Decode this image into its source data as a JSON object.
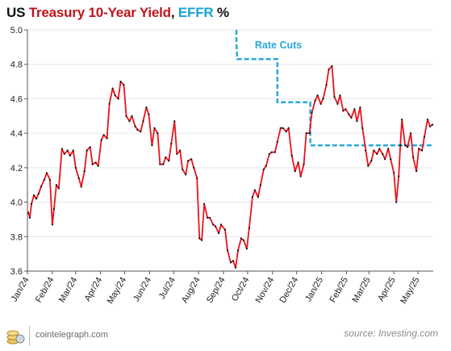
{
  "header": {
    "title_prefix": "US ",
    "title_treasury": "Treasury 10-Year Yield",
    "title_comma": ", ",
    "title_effr": "EFFR",
    "title_suffix": " %"
  },
  "footer": {
    "site": "cointelegraph.com",
    "source": "source: Investing.com"
  },
  "colors": {
    "treasury": "#e8141c",
    "effr": "#29a8dc",
    "axis": "#555555",
    "grid": "#e6e6e6"
  },
  "icons": [
    "coin-stack-logo-icon"
  ],
  "chart_data": {
    "type": "line",
    "title": "US Treasury 10-Year Yield, EFFR %",
    "ylim": [
      3.6,
      5.0
    ],
    "yticks": [
      "3.6",
      "3.8",
      "4.0",
      "4.2",
      "4.4",
      "4.6",
      "4.8",
      "5.0"
    ],
    "xlim": [
      "2024-01-01",
      "2025-05-20"
    ],
    "xticks": [
      {
        "date": "2024-01-01",
        "label": "Jan/24"
      },
      {
        "date": "2024-02-01",
        "label": "Feb/24"
      },
      {
        "date": "2024-03-01",
        "label": "Mar/24"
      },
      {
        "date": "2024-04-01",
        "label": "Apr/24"
      },
      {
        "date": "2024-05-01",
        "label": "May/24"
      },
      {
        "date": "2024-06-01",
        "label": "Jun/24"
      },
      {
        "date": "2024-07-01",
        "label": "Jul/24"
      },
      {
        "date": "2024-08-01",
        "label": "Aug/24"
      },
      {
        "date": "2024-09-01",
        "label": "Sep/24"
      },
      {
        "date": "2024-10-01",
        "label": "Oct/24"
      },
      {
        "date": "2024-11-01",
        "label": "Nov/24"
      },
      {
        "date": "2024-12-01",
        "label": "Dec/24"
      },
      {
        "date": "2025-01-01",
        "label": "Jan/25"
      },
      {
        "date": "2025-02-01",
        "label": "Feb/25"
      },
      {
        "date": "2025-03-01",
        "label": "Mar/25"
      },
      {
        "date": "2025-04-01",
        "label": "Apr/25"
      },
      {
        "date": "2025-05-01",
        "label": "May/25"
      }
    ],
    "annotation": {
      "text": "Rate Cuts",
      "date": "2024-10-10",
      "y": 4.91
    },
    "series": [
      {
        "name": "Treasury 10-Year Yield",
        "style": "solid",
        "points": [
          [
            "2024-01-02",
            3.94
          ],
          [
            "2024-01-04",
            3.91
          ],
          [
            "2024-01-06",
            3.99
          ],
          [
            "2024-01-09",
            4.04
          ],
          [
            "2024-01-12",
            4.02
          ],
          [
            "2024-01-15",
            4.05
          ],
          [
            "2024-01-18",
            4.09
          ],
          [
            "2024-01-22",
            4.13
          ],
          [
            "2024-01-25",
            4.17
          ],
          [
            "2024-01-29",
            4.13
          ],
          [
            "2024-02-01",
            3.87
          ],
          [
            "2024-02-03",
            3.96
          ],
          [
            "2024-02-06",
            4.1
          ],
          [
            "2024-02-09",
            4.08
          ],
          [
            "2024-02-13",
            4.31
          ],
          [
            "2024-02-16",
            4.28
          ],
          [
            "2024-02-20",
            4.3
          ],
          [
            "2024-02-23",
            4.27
          ],
          [
            "2024-02-27",
            4.3
          ],
          [
            "2024-03-01",
            4.2
          ],
          [
            "2024-03-05",
            4.14
          ],
          [
            "2024-03-08",
            4.09
          ],
          [
            "2024-03-12",
            4.18
          ],
          [
            "2024-03-15",
            4.3
          ],
          [
            "2024-03-19",
            4.32
          ],
          [
            "2024-03-22",
            4.22
          ],
          [
            "2024-03-26",
            4.23
          ],
          [
            "2024-03-29",
            4.21
          ],
          [
            "2024-04-02",
            4.36
          ],
          [
            "2024-04-05",
            4.39
          ],
          [
            "2024-04-09",
            4.37
          ],
          [
            "2024-04-12",
            4.57
          ],
          [
            "2024-04-16",
            4.66
          ],
          [
            "2024-04-19",
            4.62
          ],
          [
            "2024-04-23",
            4.6
          ],
          [
            "2024-04-26",
            4.7
          ],
          [
            "2024-04-30",
            4.68
          ],
          [
            "2024-05-03",
            4.5
          ],
          [
            "2024-05-07",
            4.47
          ],
          [
            "2024-05-10",
            4.5
          ],
          [
            "2024-05-14",
            4.44
          ],
          [
            "2024-05-17",
            4.42
          ],
          [
            "2024-05-21",
            4.41
          ],
          [
            "2024-05-24",
            4.47
          ],
          [
            "2024-05-28",
            4.55
          ],
          [
            "2024-05-31",
            4.51
          ],
          [
            "2024-06-04",
            4.33
          ],
          [
            "2024-06-07",
            4.43
          ],
          [
            "2024-06-11",
            4.4
          ],
          [
            "2024-06-14",
            4.22
          ],
          [
            "2024-06-18",
            4.22
          ],
          [
            "2024-06-21",
            4.26
          ],
          [
            "2024-06-25",
            4.24
          ],
          [
            "2024-06-28",
            4.34
          ],
          [
            "2024-07-02",
            4.47
          ],
          [
            "2024-07-05",
            4.28
          ],
          [
            "2024-07-09",
            4.3
          ],
          [
            "2024-07-12",
            4.19
          ],
          [
            "2024-07-16",
            4.16
          ],
          [
            "2024-07-19",
            4.24
          ],
          [
            "2024-07-23",
            4.25
          ],
          [
            "2024-07-26",
            4.2
          ],
          [
            "2024-07-30",
            4.14
          ],
          [
            "2024-08-02",
            3.79
          ],
          [
            "2024-08-05",
            3.78
          ],
          [
            "2024-08-08",
            3.99
          ],
          [
            "2024-08-12",
            3.91
          ],
          [
            "2024-08-15",
            3.91
          ],
          [
            "2024-08-19",
            3.87
          ],
          [
            "2024-08-22",
            3.86
          ],
          [
            "2024-08-26",
            3.82
          ],
          [
            "2024-08-29",
            3.87
          ],
          [
            "2024-09-03",
            3.84
          ],
          [
            "2024-09-06",
            3.72
          ],
          [
            "2024-09-10",
            3.65
          ],
          [
            "2024-09-13",
            3.66
          ],
          [
            "2024-09-16",
            3.62
          ],
          [
            "2024-09-19",
            3.72
          ],
          [
            "2024-09-23",
            3.79
          ],
          [
            "2024-09-26",
            3.78
          ],
          [
            "2024-09-30",
            3.73
          ],
          [
            "2024-10-03",
            3.85
          ],
          [
            "2024-10-07",
            4.03
          ],
          [
            "2024-10-10",
            4.07
          ],
          [
            "2024-10-14",
            4.03
          ],
          [
            "2024-10-17",
            4.1
          ],
          [
            "2024-10-21",
            4.19
          ],
          [
            "2024-10-24",
            4.21
          ],
          [
            "2024-10-28",
            4.28
          ],
          [
            "2024-10-31",
            4.29
          ],
          [
            "2024-11-04",
            4.29
          ],
          [
            "2024-11-07",
            4.35
          ],
          [
            "2024-11-11",
            4.43
          ],
          [
            "2024-11-14",
            4.43
          ],
          [
            "2024-11-18",
            4.41
          ],
          [
            "2024-11-21",
            4.43
          ],
          [
            "2024-11-25",
            4.27
          ],
          [
            "2024-11-29",
            4.18
          ],
          [
            "2024-12-03",
            4.23
          ],
          [
            "2024-12-06",
            4.15
          ],
          [
            "2024-12-10",
            4.22
          ],
          [
            "2024-12-13",
            4.4
          ],
          [
            "2024-12-17",
            4.4
          ],
          [
            "2024-12-20",
            4.52
          ],
          [
            "2024-12-24",
            4.59
          ],
          [
            "2024-12-27",
            4.62
          ],
          [
            "2024-12-31",
            4.57
          ],
          [
            "2025-01-03",
            4.6
          ],
          [
            "2025-01-07",
            4.68
          ],
          [
            "2025-01-10",
            4.77
          ],
          [
            "2025-01-14",
            4.79
          ],
          [
            "2025-01-17",
            4.61
          ],
          [
            "2025-01-21",
            4.57
          ],
          [
            "2025-01-24",
            4.62
          ],
          [
            "2025-01-28",
            4.53
          ],
          [
            "2025-01-31",
            4.54
          ],
          [
            "2025-02-04",
            4.51
          ],
          [
            "2025-02-07",
            4.49
          ],
          [
            "2025-02-11",
            4.54
          ],
          [
            "2025-02-14",
            4.47
          ],
          [
            "2025-02-18",
            4.55
          ],
          [
            "2025-02-21",
            4.43
          ],
          [
            "2025-02-25",
            4.3
          ],
          [
            "2025-02-28",
            4.21
          ],
          [
            "2025-03-04",
            4.24
          ],
          [
            "2025-03-07",
            4.3
          ],
          [
            "2025-03-11",
            4.28
          ],
          [
            "2025-03-14",
            4.31
          ],
          [
            "2025-03-18",
            4.28
          ],
          [
            "2025-03-21",
            4.25
          ],
          [
            "2025-03-25",
            4.31
          ],
          [
            "2025-03-28",
            4.25
          ],
          [
            "2025-04-01",
            4.17
          ],
          [
            "2025-04-04",
            4.0
          ],
          [
            "2025-04-07",
            4.15
          ],
          [
            "2025-04-09",
            4.33
          ],
          [
            "2025-04-11",
            4.48
          ],
          [
            "2025-04-15",
            4.33
          ],
          [
            "2025-04-18",
            4.32
          ],
          [
            "2025-04-22",
            4.4
          ],
          [
            "2025-04-25",
            4.26
          ],
          [
            "2025-04-29",
            4.18
          ],
          [
            "2025-05-02",
            4.31
          ],
          [
            "2025-05-06",
            4.3
          ],
          [
            "2025-05-09",
            4.38
          ],
          [
            "2025-05-13",
            4.48
          ],
          [
            "2025-05-16",
            4.44
          ],
          [
            "2025-05-19",
            4.45
          ]
        ]
      },
      {
        "name": "EFFR",
        "style": "dashed",
        "points": [
          [
            "2024-09-17",
            5.0
          ],
          [
            "2024-09-17",
            4.93
          ],
          [
            "2024-09-18",
            4.83
          ],
          [
            "2024-11-07",
            4.83
          ],
          [
            "2024-11-07",
            4.58
          ],
          [
            "2024-12-18",
            4.58
          ],
          [
            "2024-12-18",
            4.33
          ],
          [
            "2025-05-19",
            4.33
          ]
        ]
      }
    ]
  }
}
